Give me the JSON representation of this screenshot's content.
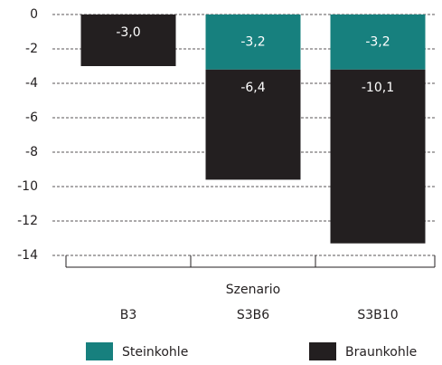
{
  "chart_data": {
    "type": "stacked_bar",
    "x_label": "Szenario",
    "categories": [
      "B3",
      "S3B6",
      "S3B10"
    ],
    "series": [
      {
        "name": "Steinkohle",
        "color": "#17807e",
        "values": [
          null,
          -3.2,
          -3.2
        ],
        "value_labels": [
          null,
          "-3,2",
          "-3,2"
        ]
      },
      {
        "name": "Braunkohle",
        "color": "#231f20",
        "values": [
          -3.0,
          -6.4,
          -10.1
        ],
        "value_labels": [
          "-3,0",
          "-6,4",
          "-10,1"
        ]
      }
    ],
    "ylim": [
      -14,
      0
    ],
    "yticks": [
      0,
      -2,
      -4,
      -6,
      -8,
      -10,
      -12,
      -14
    ],
    "grid": true
  }
}
